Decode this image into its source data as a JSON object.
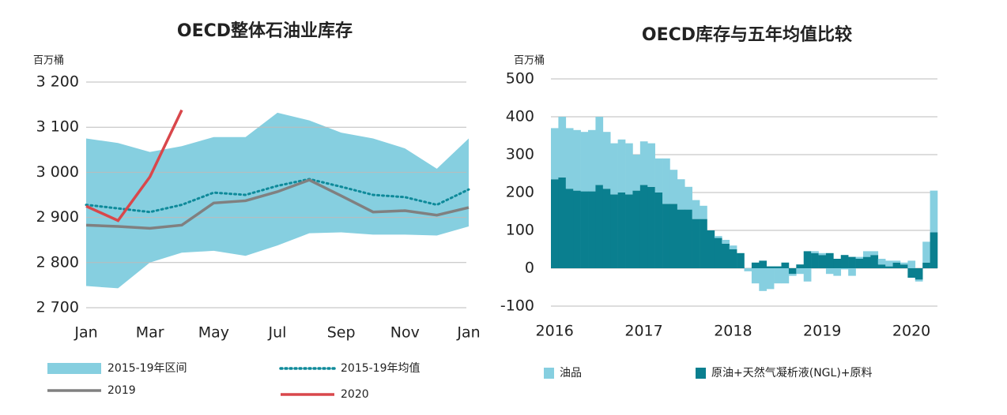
{
  "chart_data": [
    {
      "type": "line",
      "title": "OECD整体石油业库存",
      "y_label": "百万桶",
      "categories": [
        "Jan",
        null,
        "Mar",
        null,
        "May",
        null,
        "Jul",
        null,
        "Sep",
        null,
        "Nov",
        null,
        "Jan"
      ],
      "ylim": [
        2700,
        3200
      ],
      "yticks": [
        {
          "value": 2700,
          "label": "2 700"
        },
        {
          "value": 2800,
          "label": "2 800"
        },
        {
          "value": 2900,
          "label": "2 900"
        },
        {
          "value": 3000,
          "label": "3 000"
        },
        {
          "value": 3100,
          "label": "3 100"
        },
        {
          "value": 3200,
          "label": "3 200"
        }
      ],
      "grid": true,
      "series": [
        {
          "name": "2015-19年区间",
          "color": "#86cfe0",
          "style": "band",
          "low": [
            2748,
            2743,
            2800,
            2822,
            2826,
            2815,
            2838,
            2865,
            2867,
            2862,
            2862,
            2860,
            2880
          ],
          "high": [
            3075,
            3065,
            3045,
            3058,
            3078,
            3078,
            3132,
            3115,
            3088,
            3075,
            3053,
            3008,
            3075
          ]
        },
        {
          "name": "2015-19年均值",
          "color": "#0e8a9a",
          "style": "dotted",
          "values": [
            2928,
            2920,
            2912,
            2928,
            2955,
            2950,
            2970,
            2985,
            2968,
            2950,
            2945,
            2928,
            2962
          ]
        },
        {
          "name": "2019",
          "color": "#808080",
          "style": "solid",
          "values": [
            2883,
            2880,
            2876,
            2883,
            2932,
            2937,
            2957,
            2983,
            2948,
            2912,
            2915,
            2905,
            2922
          ]
        },
        {
          "name": "2020",
          "color": "#d9474b",
          "style": "solid",
          "values": [
            2925,
            2893,
            2990,
            3138,
            null,
            null,
            null,
            null,
            null,
            null,
            null,
            null,
            null
          ]
        }
      ]
    },
    {
      "type": "stacked_bar",
      "title": "OECD库存与五年均值比较",
      "y_label": "百万桶",
      "categories": [
        "2016",
        null,
        null,
        null,
        null,
        null,
        null,
        null,
        null,
        null,
        null,
        null,
        "2017",
        null,
        null,
        null,
        null,
        null,
        null,
        null,
        null,
        null,
        null,
        null,
        "2018",
        null,
        null,
        null,
        null,
        null,
        null,
        null,
        null,
        null,
        null,
        null,
        "2019",
        null,
        null,
        null,
        null,
        null,
        null,
        null,
        null,
        null,
        null,
        null,
        "2020",
        null,
        null,
        null
      ],
      "ylim": [
        -100,
        500
      ],
      "yticks": [
        -100,
        0,
        100,
        200,
        300,
        400,
        500
      ],
      "grid": true,
      "series": [
        {
          "name": "原油+天然气凝析液(NGL)+原料",
          "color": "#0a7f8f",
          "values": [
            235,
            240,
            210,
            205,
            203,
            203,
            220,
            210,
            195,
            200,
            195,
            205,
            220,
            215,
            200,
            170,
            170,
            155,
            155,
            130,
            130,
            100,
            80,
            65,
            50,
            40,
            0,
            15,
            20,
            5,
            5,
            15,
            -15,
            10,
            45,
            40,
            35,
            40,
            25,
            35,
            30,
            25,
            30,
            35,
            10,
            5,
            15,
            10,
            -25,
            -30,
            15,
            95
          ]
        },
        {
          "name": "油品",
          "color": "#86cfe0",
          "values": [
            135,
            160,
            160,
            160,
            157,
            162,
            180,
            150,
            135,
            140,
            135,
            95,
            115,
            115,
            90,
            120,
            90,
            80,
            60,
            50,
            35,
            0,
            5,
            10,
            10,
            0,
            -8,
            -40,
            -60,
            -55,
            -40,
            -40,
            -5,
            -15,
            -35,
            5,
            5,
            -15,
            -20,
            -3,
            -20,
            5,
            15,
            10,
            15,
            15,
            5,
            5,
            20,
            -5,
            55,
            110
          ]
        }
      ]
    }
  ]
}
